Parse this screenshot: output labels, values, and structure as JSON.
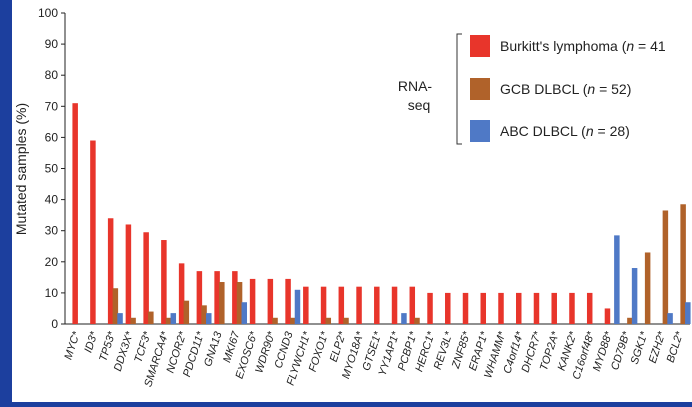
{
  "chart_data": {
    "type": "bar",
    "ylabel": "Mutated samples (%)",
    "ylim": [
      0,
      100
    ],
    "yticks": [
      0,
      10,
      20,
      30,
      40,
      50,
      60,
      70,
      80,
      90,
      100
    ],
    "grid": false,
    "legend_position": "top-right",
    "legend_group_label_lines": [
      "RNA-",
      "seq"
    ],
    "categories": [
      "MYC*",
      "ID3*",
      "TP53*",
      "DDX3X*",
      "TCF3*",
      "SMARCA4*",
      "NCOR2*",
      "PDCD11*",
      "GNA13",
      "MKI67",
      "EXOSC6*",
      "WDR90*",
      "CCND3",
      "FLYWCH1*",
      "FOXO1*",
      "ELP2*",
      "MYO18A*",
      "GTSE1*",
      "YY1AP1*",
      "PCBP1*",
      "HERC1*",
      "REV3L*",
      "ZNF85*",
      "ERAP1*",
      "WHAMM*",
      "C4orf14*",
      "DHCR7*",
      "TOP2A*",
      "KANK2*",
      "C16orf48*",
      "MYD88*",
      "CD79B*",
      "SGK1*",
      "EZH2*",
      "BCL2*"
    ],
    "series": [
      {
        "name_prefix": "Burkitt's lymphoma (",
        "name_n": "n",
        "name_suffix": " = 41",
        "color": "#e8352b",
        "values": [
          71,
          59,
          34,
          32,
          29.5,
          27,
          19.5,
          17,
          17,
          17,
          14.5,
          14.5,
          14.5,
          12,
          12,
          12,
          12,
          12,
          12,
          12,
          10,
          10,
          10,
          10,
          10,
          10,
          10,
          10,
          10,
          10,
          5,
          0,
          0,
          0,
          0
        ]
      },
      {
        "name_prefix": "GCB DLBCL (",
        "name_n": "n",
        "name_suffix": " = 52)",
        "color": "#b0622a",
        "values": [
          0,
          0,
          11.5,
          2,
          4,
          2,
          7.5,
          6,
          13.5,
          13.5,
          0,
          2,
          2,
          0,
          2,
          2,
          0,
          0,
          0,
          2,
          0,
          0,
          0,
          0,
          0,
          0,
          0,
          0,
          0,
          0,
          0,
          2,
          23,
          36.5,
          38.5
        ]
      },
      {
        "name_prefix": "ABC DLBCL (",
        "name_n": "n",
        "name_suffix": " = 28)",
        "color": "#4f79c6",
        "values": [
          0,
          0,
          3.5,
          0,
          0,
          3.5,
          0,
          3.5,
          0,
          7,
          0,
          0,
          11,
          0,
          0,
          0,
          0,
          0,
          3.5,
          0,
          0,
          0,
          0,
          0,
          0,
          0,
          0,
          0,
          0,
          0,
          28.5,
          18,
          0,
          3.5,
          7
        ]
      }
    ]
  }
}
